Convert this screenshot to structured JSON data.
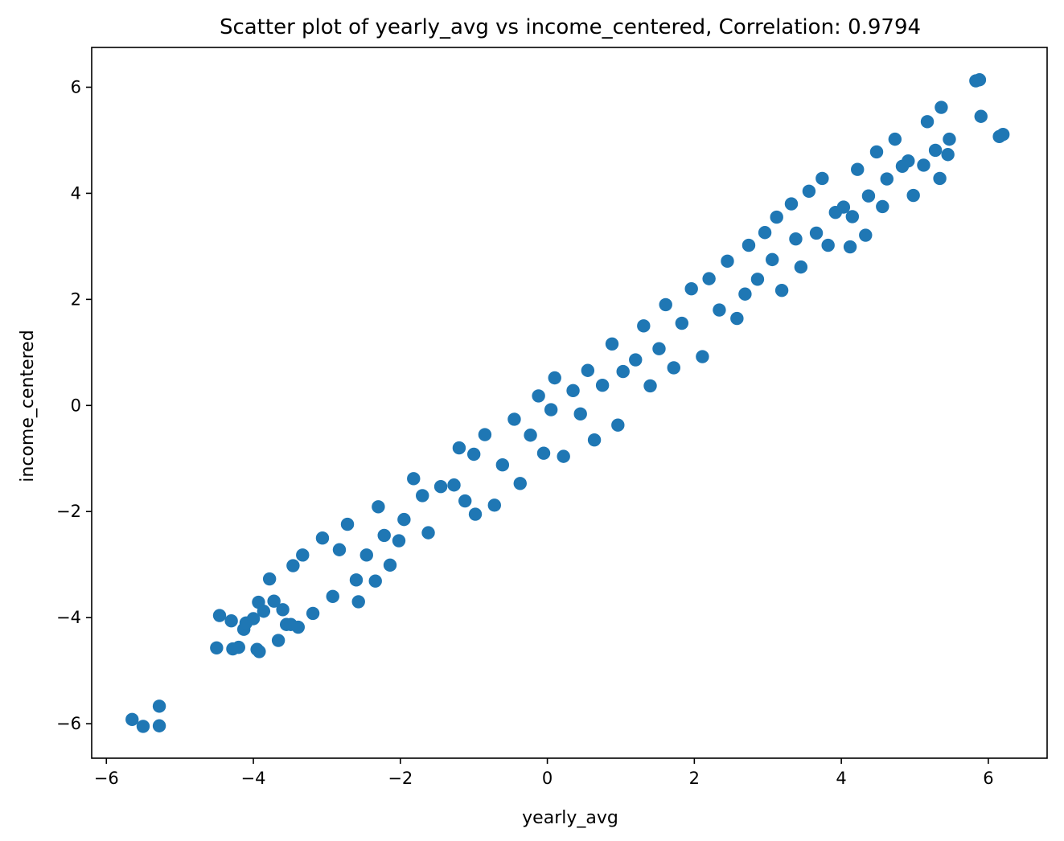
{
  "chart_data": {
    "type": "scatter",
    "title": "Scatter plot of yearly_avg vs income_centered, Correlation: 0.9794",
    "xlabel": "yearly_avg",
    "ylabel": "income_centered",
    "xlim": [
      -6.2,
      6.8
    ],
    "ylim": [
      -6.65,
      6.75
    ],
    "x_ticks": [
      -6,
      -4,
      -2,
      0,
      2,
      4,
      6
    ],
    "y_ticks": [
      -6,
      -4,
      -2,
      0,
      2,
      4,
      6
    ],
    "x_tick_labels": [
      "−6",
      "−4",
      "−2",
      "0",
      "2",
      "4",
      "6"
    ],
    "y_tick_labels": [
      "−6",
      "−4",
      "−2",
      "0",
      "2",
      "4",
      "6"
    ],
    "grid": false,
    "correlation": 0.9794,
    "series": [
      {
        "color": "#1f77b4",
        "points": [
          [
            -5.65,
            -5.92
          ],
          [
            -5.5,
            -6.05
          ],
          [
            -5.28,
            -6.04
          ],
          [
            -5.28,
            -5.67
          ],
          [
            -4.5,
            -4.57
          ],
          [
            -4.46,
            -3.96
          ],
          [
            -4.3,
            -4.06
          ],
          [
            -4.28,
            -4.59
          ],
          [
            -4.2,
            -4.56
          ],
          [
            -4.13,
            -4.22
          ],
          [
            -4.1,
            -4.1
          ],
          [
            -4.0,
            -4.02
          ],
          [
            -3.95,
            -4.6
          ],
          [
            -3.92,
            -4.64
          ],
          [
            -3.93,
            -3.71
          ],
          [
            -3.86,
            -3.88
          ],
          [
            -3.78,
            -3.27
          ],
          [
            -3.72,
            -3.69
          ],
          [
            -3.66,
            -4.43
          ],
          [
            -3.6,
            -3.85
          ],
          [
            -3.55,
            -4.13
          ],
          [
            -3.49,
            -4.13
          ],
          [
            -3.46,
            -3.02
          ],
          [
            -3.39,
            -4.18
          ],
          [
            -3.33,
            -2.82
          ],
          [
            -3.19,
            -3.92
          ],
          [
            -3.06,
            -2.5
          ],
          [
            -2.92,
            -3.6
          ],
          [
            -2.83,
            -2.72
          ],
          [
            -2.72,
            -2.24
          ],
          [
            -2.6,
            -3.29
          ],
          [
            -2.57,
            -3.7
          ],
          [
            -2.46,
            -2.82
          ],
          [
            -2.34,
            -3.31
          ],
          [
            -2.3,
            -1.91
          ],
          [
            -2.22,
            -2.45
          ],
          [
            -2.14,
            -3.01
          ],
          [
            -2.02,
            -2.55
          ],
          [
            -1.95,
            -2.15
          ],
          [
            -1.82,
            -1.38
          ],
          [
            -1.7,
            -1.7
          ],
          [
            -1.62,
            -2.4
          ],
          [
            -1.45,
            -1.53
          ],
          [
            -1.27,
            -1.5
          ],
          [
            -1.2,
            -0.8
          ],
          [
            -1.12,
            -1.8
          ],
          [
            -1.0,
            -0.92
          ],
          [
            -0.98,
            -2.05
          ],
          [
            -0.85,
            -0.55
          ],
          [
            -0.72,
            -1.88
          ],
          [
            -0.61,
            -1.12
          ],
          [
            -0.45,
            -0.26
          ],
          [
            -0.37,
            -1.47
          ],
          [
            -0.23,
            -0.56
          ],
          [
            -0.12,
            0.18
          ],
          [
            -0.05,
            -0.9
          ],
          [
            0.05,
            -0.08
          ],
          [
            0.1,
            0.52
          ],
          [
            0.22,
            -0.96
          ],
          [
            0.35,
            0.28
          ],
          [
            0.45,
            -0.16
          ],
          [
            0.55,
            0.66
          ],
          [
            0.64,
            -0.65
          ],
          [
            0.75,
            0.38
          ],
          [
            0.88,
            1.16
          ],
          [
            0.96,
            -0.37
          ],
          [
            1.03,
            0.64
          ],
          [
            1.2,
            0.86
          ],
          [
            1.31,
            1.5
          ],
          [
            1.4,
            0.37
          ],
          [
            1.52,
            1.07
          ],
          [
            1.61,
            1.9
          ],
          [
            1.72,
            0.71
          ],
          [
            1.83,
            1.55
          ],
          [
            1.96,
            2.2
          ],
          [
            2.11,
            0.92
          ],
          [
            2.2,
            2.39
          ],
          [
            2.34,
            1.8
          ],
          [
            2.45,
            2.72
          ],
          [
            2.58,
            1.64
          ],
          [
            2.69,
            2.1
          ],
          [
            2.74,
            3.02
          ],
          [
            2.86,
            2.38
          ],
          [
            2.96,
            3.26
          ],
          [
            3.06,
            2.75
          ],
          [
            3.12,
            3.55
          ],
          [
            3.19,
            2.17
          ],
          [
            3.32,
            3.8
          ],
          [
            3.38,
            3.14
          ],
          [
            3.45,
            2.61
          ],
          [
            3.56,
            4.04
          ],
          [
            3.66,
            3.25
          ],
          [
            3.74,
            4.28
          ],
          [
            3.82,
            3.02
          ],
          [
            3.92,
            3.64
          ],
          [
            4.03,
            3.74
          ],
          [
            4.12,
            2.99
          ],
          [
            4.15,
            3.56
          ],
          [
            4.22,
            4.45
          ],
          [
            4.33,
            3.21
          ],
          [
            4.37,
            3.95
          ],
          [
            4.48,
            4.78
          ],
          [
            4.56,
            3.75
          ],
          [
            4.62,
            4.27
          ],
          [
            4.73,
            5.02
          ],
          [
            4.83,
            4.51
          ],
          [
            4.91,
            4.61
          ],
          [
            4.98,
            3.96
          ],
          [
            5.12,
            4.53
          ],
          [
            5.17,
            5.35
          ],
          [
            5.28,
            4.81
          ],
          [
            5.34,
            4.28
          ],
          [
            5.36,
            5.62
          ],
          [
            5.45,
            4.73
          ],
          [
            5.47,
            5.02
          ],
          [
            5.83,
            6.12
          ],
          [
            5.88,
            6.14
          ],
          [
            5.9,
            5.45
          ],
          [
            6.15,
            5.07
          ],
          [
            6.2,
            5.11
          ]
        ]
      }
    ]
  }
}
